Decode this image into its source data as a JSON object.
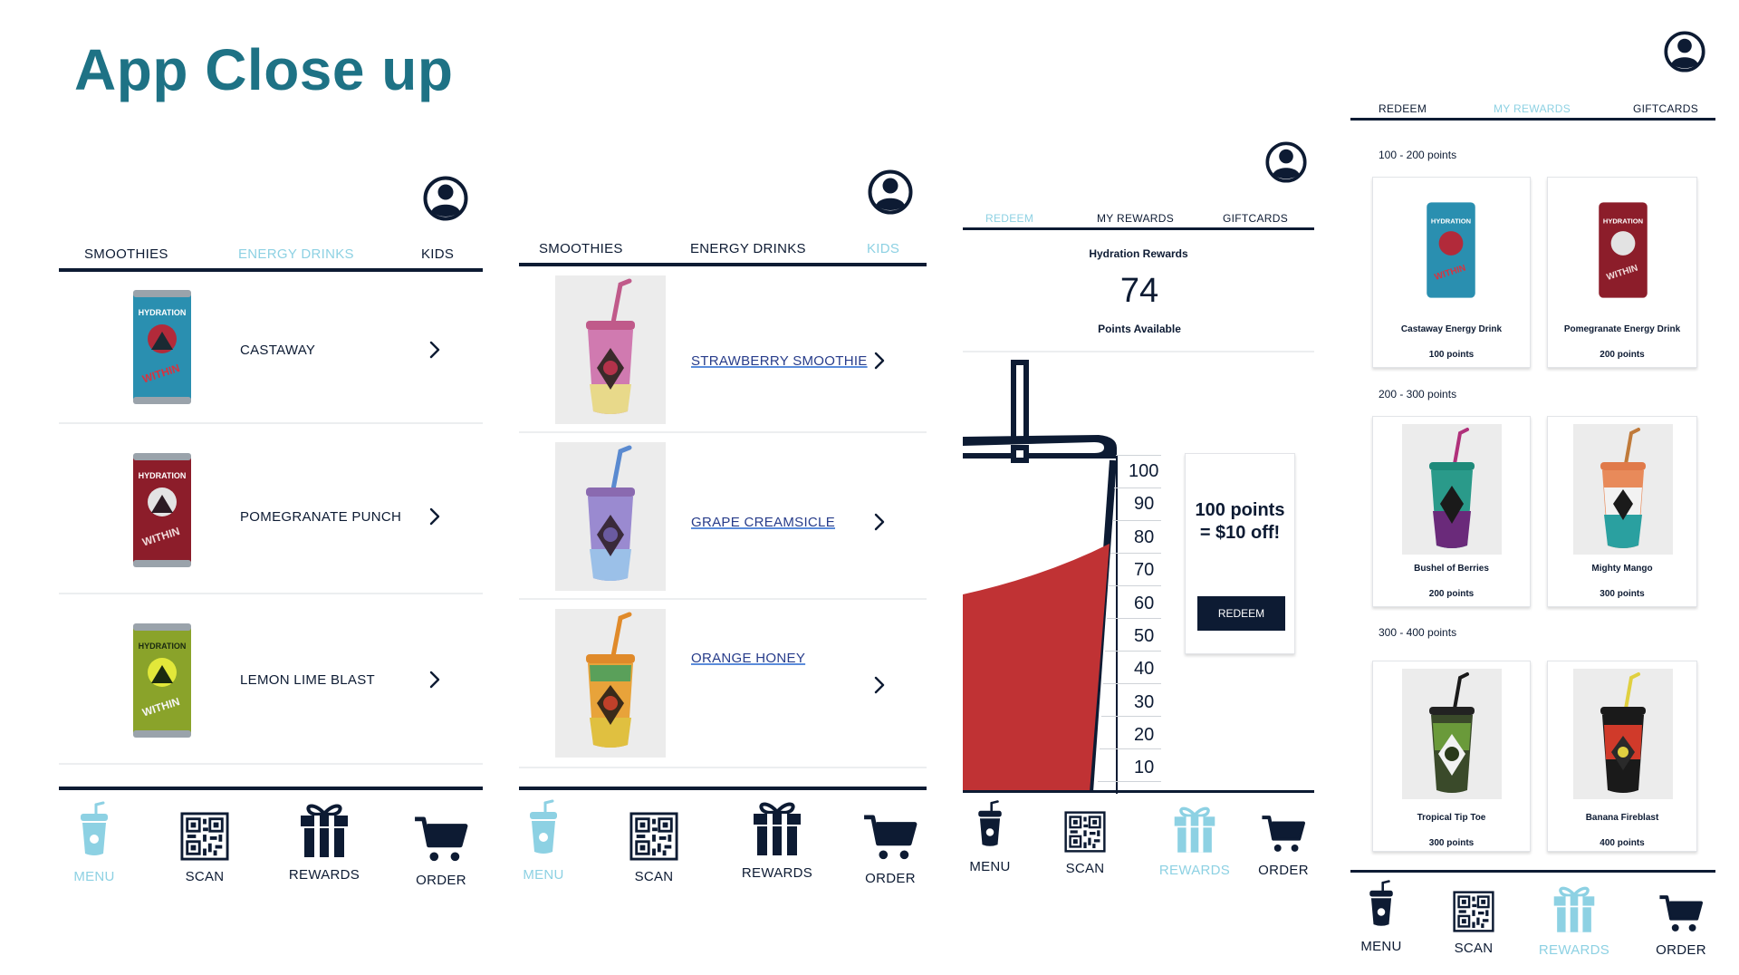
{
  "page": {
    "title": "App Close up"
  },
  "colors": {
    "navy": "#0d1b33",
    "accent": "#8dd1e3",
    "teal_title": "#1e7285",
    "red_fill": "#c03234",
    "link": "#273c8a"
  },
  "screen1": {
    "tabs": [
      "SMOOTHIES",
      "ENERGY DRINKS",
      "KIDS"
    ],
    "active_tab": "ENERGY DRINKS",
    "items": [
      "CASTAWAY",
      "POMEGRANATE PUNCH",
      "LEMON LIME BLAST"
    ],
    "nav": [
      "MENU",
      "SCAN",
      "REWARDS",
      "ORDER"
    ],
    "active_nav": "MENU"
  },
  "screen2": {
    "tabs": [
      "SMOOTHIES",
      "ENERGY DRINKS",
      "KIDS"
    ],
    "active_tab": "KIDS",
    "items": [
      "STRAWBERRY SMOOTHIE",
      "GRAPE CREAMSICLE",
      "ORANGE HONEY"
    ],
    "nav": [
      "MENU",
      "SCAN",
      "REWARDS",
      "ORDER"
    ],
    "active_nav": "MENU"
  },
  "screen3": {
    "tabs": [
      "REDEEM",
      "MY REWARDS",
      "GIFTCARDS"
    ],
    "active_tab": "REDEEM",
    "heading": "Hydration Rewards",
    "points": "74",
    "points_label": "Points Available",
    "scale": [
      "100",
      "90",
      "80",
      "70",
      "60",
      "50",
      "40",
      "30",
      "20",
      "10"
    ],
    "offer": "100 points = $10 off!",
    "redeem_button": "REDEEM",
    "nav": [
      "MENU",
      "SCAN",
      "REWARDS",
      "ORDER"
    ],
    "active_nav": "REWARDS"
  },
  "screen4": {
    "tabs": [
      "REDEEM",
      "MY REWARDS",
      "GIFTCARDS"
    ],
    "active_tab": "MY REWARDS",
    "sections": [
      {
        "label": "100 - 200 points",
        "cards": [
          {
            "name": "Castaway Energy Drink",
            "points": "100 points"
          },
          {
            "name": "Pomegranate Energy Drink",
            "points": "200 points"
          }
        ]
      },
      {
        "label": "200 - 300 points",
        "cards": [
          {
            "name": "Bushel of Berries",
            "points": "200 points"
          },
          {
            "name": "Mighty Mango",
            "points": "300 points"
          }
        ]
      },
      {
        "label": "300 - 400 points",
        "cards": [
          {
            "name": "Tropical Tip Toe",
            "points": "300 points"
          },
          {
            "name": "Banana Fireblast",
            "points": "400 points"
          }
        ]
      }
    ],
    "nav": [
      "MENU",
      "SCAN",
      "REWARDS",
      "ORDER"
    ],
    "active_nav": "REWARDS"
  }
}
